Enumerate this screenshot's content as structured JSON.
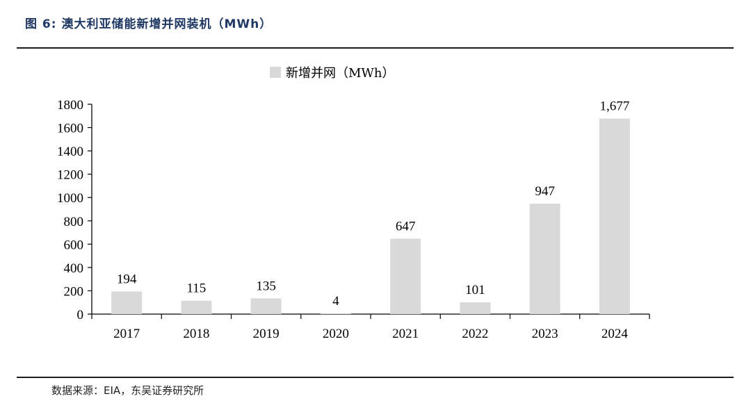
{
  "figure": {
    "title": "图 6:  澳大利亚储能新增并网装机（MWh）",
    "source": "数据来源：EIA，东吴证券研究所"
  },
  "colors": {
    "bar": "#d9d9d9",
    "axis": "#000000",
    "title": "#1f3864"
  },
  "chart_data": {
    "type": "bar",
    "categories": [
      "2017",
      "2018",
      "2019",
      "2020",
      "2021",
      "2022",
      "2023",
      "2024"
    ],
    "series": [
      {
        "name": "新增并网（MWh）",
        "values": [
          194,
          115,
          135,
          4,
          647,
          101,
          947,
          1677
        ],
        "labels": [
          "194",
          "115",
          "135",
          "4",
          "647",
          "101",
          "947",
          "1,677"
        ]
      }
    ],
    "yticks": [
      "0",
      "200",
      "400",
      "600",
      "800",
      "1000",
      "1200",
      "1400",
      "1600",
      "1800"
    ],
    "ylim": [
      0,
      1800
    ],
    "legend_position": "top-center",
    "grid": false
  }
}
